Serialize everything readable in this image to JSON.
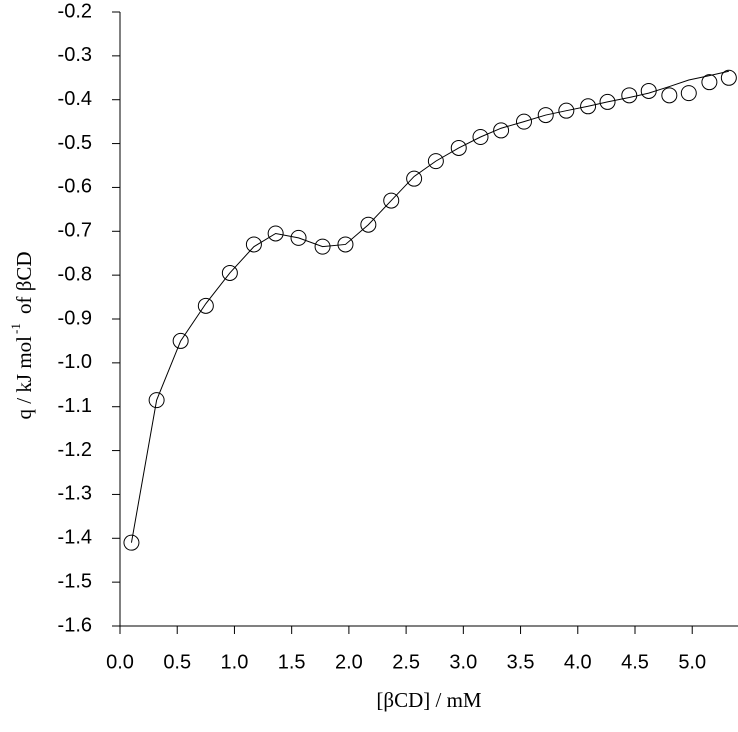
{
  "chart_data": {
    "type": "scatter",
    "x_label": "[βCD] / mM",
    "y_label": {
      "main": "q / kJ mol",
      "superscript": "-1",
      "tail": "of βCD"
    },
    "x": [
      0.1,
      0.32,
      0.53,
      0.75,
      0.96,
      1.17,
      1.36,
      1.56,
      1.77,
      1.97,
      2.17,
      2.37,
      2.57,
      2.76,
      2.96,
      3.15,
      3.33,
      3.53,
      3.72,
      3.9,
      4.09,
      4.26,
      4.45,
      4.62,
      4.8,
      4.97,
      5.15,
      5.32
    ],
    "series": [
      {
        "type": "scatter",
        "color": "#000000",
        "values": [
          -1.41,
          -1.085,
          -0.95,
          -0.87,
          -0.795,
          -0.73,
          -0.705,
          -0.715,
          -0.735,
          -0.73,
          -0.685,
          -0.63,
          -0.58,
          -0.54,
          -0.51,
          -0.485,
          -0.47,
          -0.45,
          -0.435,
          -0.425,
          -0.415,
          -0.405,
          -0.39,
          -0.38,
          -0.39,
          -0.385,
          -0.36,
          -0.35
        ]
      },
      {
        "type": "line",
        "color": "#000000",
        "values": [
          -1.41,
          -1.085,
          -0.95,
          -0.865,
          -0.795,
          -0.735,
          -0.705,
          -0.715,
          -0.735,
          -0.73,
          -0.685,
          -0.63,
          -0.575,
          -0.54,
          -0.51,
          -0.485,
          -0.465,
          -0.45,
          -0.435,
          -0.425,
          -0.415,
          -0.405,
          -0.395,
          -0.385,
          -0.37,
          -0.355,
          -0.345,
          -0.335
        ]
      }
    ],
    "xlim": [
      0,
      5.4
    ],
    "ylim": [
      -1.6,
      -0.2
    ],
    "xticks": [
      {
        "value": 0,
        "label": "0.0"
      },
      0.5,
      {
        "value": 1,
        "label": "1.0"
      },
      1.5,
      {
        "value": 2,
        "label": "2.0"
      },
      2.5,
      {
        "value": 3,
        "label": "3.0"
      },
      3.5,
      {
        "value": 4,
        "label": "4.0"
      },
      4.5,
      {
        "value": 5,
        "label": "5.0"
      }
    ],
    "yticks": [
      -0.2,
      -0.3,
      -0.4,
      -0.5,
      -0.6,
      -0.7,
      -0.8,
      -0.9,
      {
        "value": -1,
        "label": "-1.0"
      },
      -1.1,
      -1.2,
      -1.3,
      -1.4,
      -1.5,
      -1.6
    ],
    "grid": false
  }
}
